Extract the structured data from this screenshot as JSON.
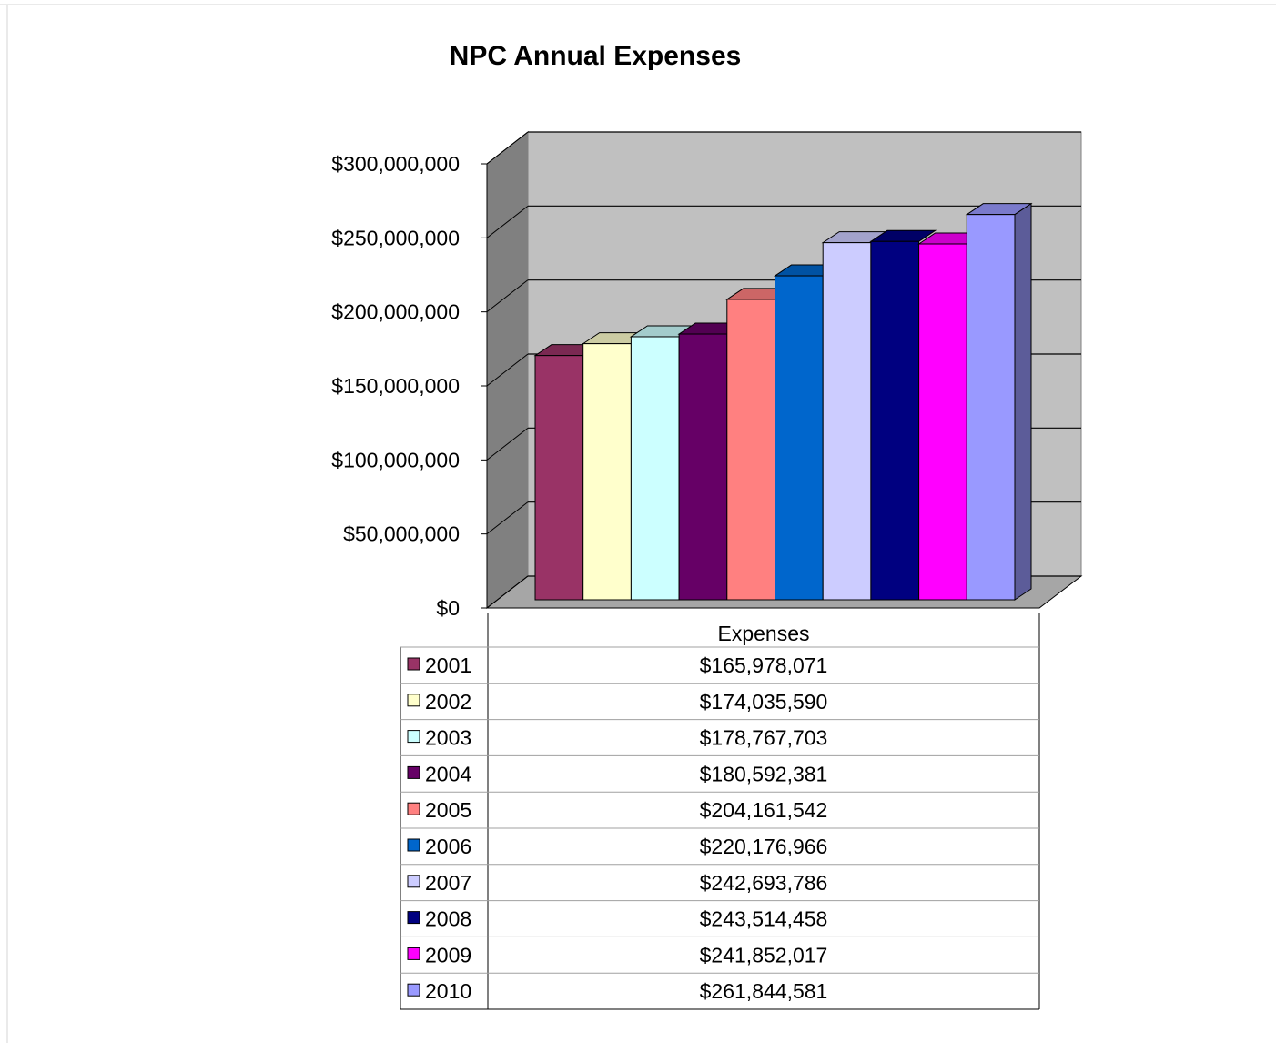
{
  "chart_data": {
    "type": "bar",
    "title": "NPC Annual Expenses",
    "series_name": "Expenses",
    "categories": [
      "2001",
      "2002",
      "2003",
      "2004",
      "2005",
      "2006",
      "2007",
      "2008",
      "2009",
      "2010"
    ],
    "values": [
      165978071,
      174035590,
      178767703,
      180592381,
      204161542,
      220176966,
      242693786,
      243514458,
      241852017,
      261844581
    ],
    "value_labels": [
      "$165,978,071",
      "$174,035,590",
      "$178,767,703",
      "$180,592,381",
      "$204,161,542",
      "$220,176,966",
      "$242,693,786",
      "$243,514,458",
      "$241,852,017",
      "$261,844,581"
    ],
    "colors": [
      "#993366",
      "#FFFFCC",
      "#CCFFFF",
      "#660066",
      "#FF8080",
      "#0066CC",
      "#CCCCFF",
      "#000080",
      "#FF00FF",
      "#9999FF"
    ],
    "ylim": [
      0,
      300000000
    ],
    "y_ticks": [
      0,
      50000000,
      100000000,
      150000000,
      200000000,
      250000000,
      300000000
    ],
    "y_tick_labels": [
      "$0",
      "$50,000,000",
      "$100,000,000",
      "$150,000,000",
      "$200,000,000",
      "$250,000,000",
      "$300,000,000"
    ],
    "grid": true,
    "style": "3d-column",
    "legend": "data-table-below"
  }
}
